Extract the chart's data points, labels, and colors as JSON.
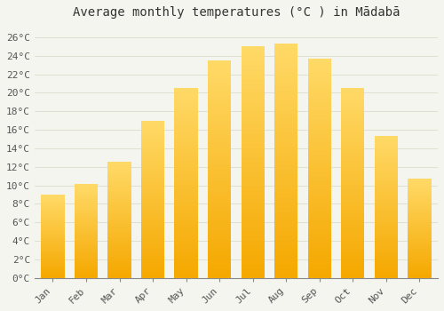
{
  "months": [
    "Jan",
    "Feb",
    "Mar",
    "Apr",
    "May",
    "Jun",
    "Jul",
    "Aug",
    "Sep",
    "Oct",
    "Nov",
    "Dec"
  ],
  "values": [
    9.0,
    10.1,
    12.5,
    17.0,
    20.5,
    23.5,
    25.0,
    25.3,
    23.7,
    20.5,
    15.3,
    10.7
  ],
  "bar_color_bottom": "#F5A800",
  "bar_color_top": "#FFD966",
  "bar_color_mid": "#FFC125",
  "title": "Average monthly temperatures (°C ) in Mādabā",
  "ylabel_ticks": [
    "0°C",
    "2°C",
    "4°C",
    "6°C",
    "8°C",
    "10°C",
    "12°C",
    "14°C",
    "16°C",
    "18°C",
    "20°C",
    "22°C",
    "24°C",
    "26°C"
  ],
  "ytick_values": [
    0,
    2,
    4,
    6,
    8,
    10,
    12,
    14,
    16,
    18,
    20,
    22,
    24,
    26
  ],
  "ylim": [
    0,
    27.5
  ],
  "background_color": "#f5f5f0",
  "plot_bg_color": "#f5f5f0",
  "grid_color": "#ddddcc",
  "title_fontsize": 10,
  "tick_fontsize": 8,
  "font_family": "monospace"
}
